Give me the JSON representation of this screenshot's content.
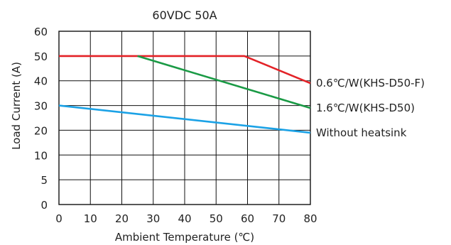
{
  "chart_data": {
    "type": "line",
    "title": "60VDC  50A",
    "xlabel": "Ambient Temperature (℃)",
    "ylabel": "Load Current (A)",
    "xlim": [
      0,
      80
    ],
    "ylim": [
      0,
      60
    ],
    "xticks": [
      "0",
      "10",
      "20",
      "30",
      "40",
      "50",
      "60",
      "70",
      "80"
    ],
    "yticks": [
      "0",
      "5",
      "10",
      "20",
      "30",
      "40",
      "50",
      "60"
    ],
    "grid": true,
    "series": [
      {
        "name": "0.6℃/W(KHS-D50-F)",
        "color": "#e32227",
        "points": [
          [
            0,
            50
          ],
          [
            59,
            50
          ],
          [
            80,
            39
          ]
        ]
      },
      {
        "name": "1.6℃/W(KHS-D50)",
        "color": "#1a9a45",
        "points": [
          [
            25,
            50
          ],
          [
            80,
            29
          ]
        ]
      },
      {
        "name": "Without heatsink",
        "color": "#1ba2e6",
        "points": [
          [
            0,
            30
          ],
          [
            80,
            19
          ]
        ]
      }
    ]
  }
}
